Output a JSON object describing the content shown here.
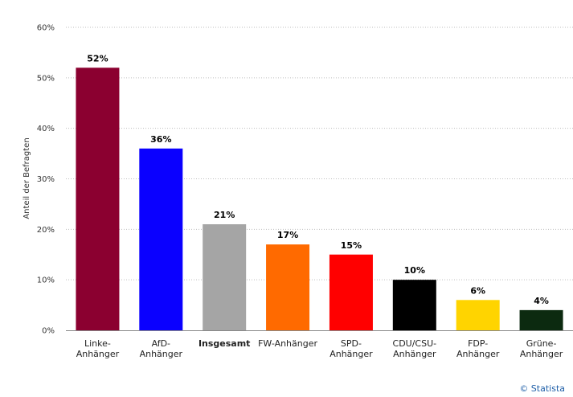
{
  "chart_data": {
    "type": "bar",
    "categories": [
      [
        "Linke-",
        "Anhänger"
      ],
      [
        "AfD-",
        "Anhänger"
      ],
      [
        "Insgesamt"
      ],
      [
        "FW-Anhänger"
      ],
      [
        "SPD-",
        "Anhänger"
      ],
      [
        "CDU/CSU-",
        "Anhänger"
      ],
      [
        "FDP-",
        "Anhänger"
      ],
      [
        "Grüne-",
        "Anhänger"
      ]
    ],
    "values": [
      52,
      36,
      21,
      17,
      15,
      10,
      6,
      4
    ],
    "value_labels": [
      "52%",
      "36%",
      "21%",
      "17%",
      "15%",
      "10%",
      "6%",
      "4%"
    ],
    "bold_category_index": 2,
    "colors": [
      "#8b0030",
      "#0a00ff",
      "#a5a5a5",
      "#ff6a00",
      "#ff0000",
      "#000000",
      "#ffd400",
      "#0c2a10"
    ],
    "ylabel": "Anteil der Befragten",
    "ylim": [
      0,
      60
    ],
    "yticks": [
      0,
      10,
      20,
      30,
      40,
      50,
      60
    ],
    "ytick_labels": [
      "0%",
      "10%",
      "20%",
      "30%",
      "40%",
      "50%",
      "60%"
    ],
    "grid": true
  },
  "credit": "© Statista"
}
